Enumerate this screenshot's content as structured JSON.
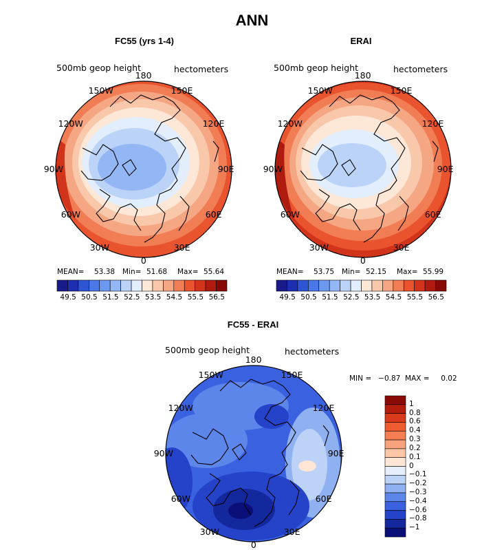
{
  "title": "ANN",
  "levels": [
    "49.5",
    "50.5",
    "51.5",
    "52.5",
    "53.5",
    "54.5",
    "55.5",
    "56.5"
  ],
  "bar_colors": [
    "#1a1a8a",
    "#1d2fb0",
    "#2e55d4",
    "#4a78e8",
    "#6c99f0",
    "#93b7f5",
    "#bcd3f8",
    "#e3eefc",
    "#fde8d8",
    "#f9c8ab",
    "#f5a683",
    "#f17d55",
    "#e9542e",
    "#d2341b",
    "#b01b10",
    "#880a07"
  ],
  "lon_labels": [
    "180",
    "150E",
    "120E",
    "90E",
    "60E",
    "30E",
    "0",
    "30W",
    "60W",
    "90W",
    "120W",
    "150W"
  ],
  "panels": [
    {
      "subtitle": "FC55 (yrs 1-4)",
      "left_label": "500mb  geop height",
      "right_label": "hectometers",
      "stats": {
        "mean_label": "MEAN=",
        "mean": "53.38",
        "min_label": "Min=",
        "min": "51.68",
        "max_label": "Max=",
        "max": "55.64"
      }
    },
    {
      "subtitle": "ERAI",
      "left_label": "500mb  geop height",
      "right_label": "hectometers",
      "stats": {
        "mean_label": "MEAN=",
        "mean": "53.75",
        "min_label": "Min=",
        "min": "52.15",
        "max_label": "Max=",
        "max": "55.99"
      }
    }
  ],
  "diff": {
    "subtitle": "FC55 - ERAI",
    "left_label": "500mb  geop height",
    "right_label": "hectometers",
    "minmax": "MIN =   −0.87  MAX =     0.02",
    "levels": [
      "1",
      "0.8",
      "0.6",
      "0.4",
      "0.3",
      "0.2",
      "0.1",
      "0",
      "−0.1",
      "−0.2",
      "−0.3",
      "−0.4",
      "−0.6",
      "−0.8",
      "−1"
    ],
    "colors": [
      "#8a0a06",
      "#b41d0e",
      "#d93a1b",
      "#ee5b2e",
      "#f57f53",
      "#f9a37e",
      "#fcc6a6",
      "#fde6d6",
      "#e6f0fc",
      "#bcd2f7",
      "#8fb0f1",
      "#5d86ea",
      "#3a62e0",
      "#2443c8",
      "#14289e",
      "#0a0f78"
    ]
  },
  "chart_data": [
    {
      "type": "heatmap",
      "title": "FC55 (yrs 1-4)",
      "subtitle": "500mb geop height",
      "units": "hectometers",
      "projection": "north polar stereographic",
      "mean": 53.38,
      "min": 51.68,
      "max": 55.64,
      "contour_levels": [
        49.5,
        50,
        50.5,
        51,
        51.5,
        52,
        52.5,
        53,
        53.5,
        54,
        54.5,
        55,
        55.5,
        56,
        56.5
      ]
    },
    {
      "type": "heatmap",
      "title": "ERAI",
      "subtitle": "500mb geop height",
      "units": "hectometers",
      "projection": "north polar stereographic",
      "mean": 53.75,
      "min": 52.15,
      "max": 55.99,
      "contour_levels": [
        49.5,
        50,
        50.5,
        51,
        51.5,
        52,
        52.5,
        53,
        53.5,
        54,
        54.5,
        55,
        55.5,
        56,
        56.5
      ]
    },
    {
      "type": "heatmap",
      "title": "FC55 - ERAI",
      "subtitle": "500mb geop height",
      "units": "hectometers",
      "projection": "north polar stereographic",
      "min": -0.87,
      "max": 0.02,
      "contour_levels": [
        -1,
        -0.8,
        -0.6,
        -0.4,
        -0.3,
        -0.2,
        -0.1,
        0,
        0.1,
        0.2,
        0.3,
        0.4,
        0.6,
        0.8,
        1
      ]
    }
  ]
}
